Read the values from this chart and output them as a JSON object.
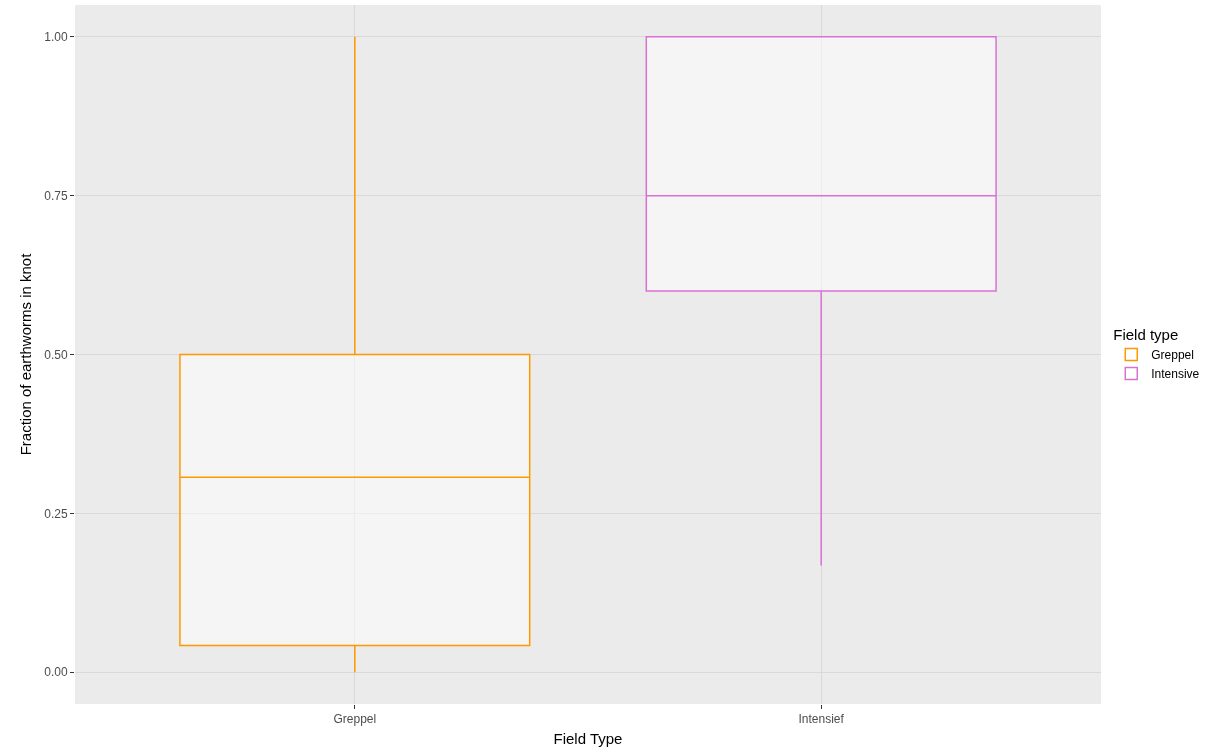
{
  "chart_data": {
    "type": "box",
    "xlabel": "Field Type",
    "ylabel": "Fraction of earthworms in knot",
    "legend_title": "Field type",
    "categories": [
      "Greppel",
      "Intensief"
    ],
    "series": [
      {
        "name": "Greppel",
        "color": "#ff9900",
        "boxes": [
          {
            "low": 0,
            "q1": 0.042,
            "median": 0.307,
            "q3": 0.5,
            "high": 1.0
          },
          null
        ]
      },
      {
        "name": "Intensive",
        "color": "#da70d6",
        "boxes": [
          null,
          {
            "low": 0.168,
            "q1": 0.6,
            "median": 0.75,
            "q3": 1.0,
            "high": 1.0
          }
        ]
      }
    ],
    "ylim": [
      -0.05,
      1.05
    ],
    "yticks": [
      {
        "value": 0,
        "label": "0.00"
      },
      {
        "value": 0.25,
        "label": "0.25"
      },
      {
        "value": 0.5,
        "label": "0.50"
      },
      {
        "value": 0.75,
        "label": "0.75"
      },
      {
        "value": 1,
        "label": "1.00"
      }
    ],
    "grid": true,
    "legend": "right"
  }
}
